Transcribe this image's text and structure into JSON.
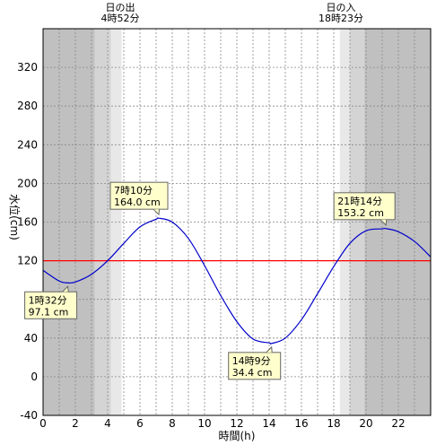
{
  "chart_data": {
    "type": "line",
    "xlabel": "時間(h)",
    "ylabel": "水位(cm)",
    "xlim": [
      0,
      24
    ],
    "ylim": [
      -40,
      360
    ],
    "x_ticks": [
      0,
      2,
      4,
      6,
      8,
      10,
      12,
      14,
      16,
      18,
      20,
      22
    ],
    "y_ticks": [
      -40,
      0,
      40,
      80,
      120,
      160,
      200,
      240,
      280,
      320
    ],
    "grid": true,
    "reference_line": {
      "value": 120,
      "color": "#ff0000"
    },
    "sunrise": {
      "label": "日の出",
      "time_text": "4時52分",
      "hour": 4.867
    },
    "sunset": {
      "label": "日の入",
      "time_text": "18時23分",
      "hour": 18.383
    },
    "series": [
      {
        "color": "#0000cc",
        "x": [
          0,
          1,
          1.533,
          2,
          3,
          4,
          5,
          6,
          7,
          7.167,
          8,
          9,
          10,
          11,
          12,
          13,
          14,
          14.15,
          15,
          16,
          17,
          18,
          19,
          20,
          21,
          21.233,
          22,
          23,
          24
        ],
        "y": [
          110,
          99,
          97.1,
          98,
          106,
          120,
          138,
          155,
          163,
          164,
          160,
          143,
          115,
          84,
          57,
          39,
          35,
          34.4,
          40,
          59,
          86,
          114,
          138,
          151,
          153,
          153.2,
          150,
          140,
          124
        ]
      }
    ],
    "annotations": [
      {
        "time": "1時32分",
        "value": "97.1 cm",
        "x": 1.533,
        "y": 97.1,
        "placement": "below"
      },
      {
        "time": "7時10分",
        "value": "164.0 cm",
        "x": 7.167,
        "y": 164.0,
        "placement": "above"
      },
      {
        "time": "14時9分",
        "value": "34.4 cm",
        "x": 14.15,
        "y": 34.4,
        "placement": "below"
      },
      {
        "time": "21時14分",
        "value": "153.2 cm",
        "x": 21.233,
        "y": 153.2,
        "placement": "above"
      }
    ]
  },
  "colors": {
    "night": "#c0c0c0",
    "twilight_dark": "#d4d4d4",
    "twilight_light": "#e8e8e8",
    "day": "#ffffff",
    "grid": "#888888",
    "callout_fill": "#ffffcc"
  }
}
